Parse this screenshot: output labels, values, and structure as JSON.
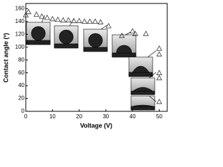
{
  "chart_data": {
    "type": "scatter",
    "x_label": "Voltage (V)",
    "y_label": "Contact angle (º)",
    "xlim": [
      0,
      53
    ],
    "ylim": [
      0,
      168
    ],
    "xticks": [
      0,
      10,
      20,
      30,
      40,
      50
    ],
    "yticks": [
      0,
      20,
      40,
      60,
      80,
      100,
      120,
      140,
      160
    ],
    "color": "#333333",
    "marker": "triangle",
    "x": [
      0,
      1,
      4,
      6,
      8,
      10,
      12,
      14,
      16,
      18,
      20,
      22,
      24,
      26,
      28,
      31,
      36,
      40,
      41,
      45,
      50,
      50,
      50,
      50,
      50
    ],
    "values": [
      150,
      155,
      151,
      148,
      146,
      144,
      143,
      142,
      142,
      141,
      141,
      140,
      140,
      140,
      139,
      133,
      118,
      125,
      121,
      121,
      98,
      89,
      60,
      52,
      15
    ]
  }
}
